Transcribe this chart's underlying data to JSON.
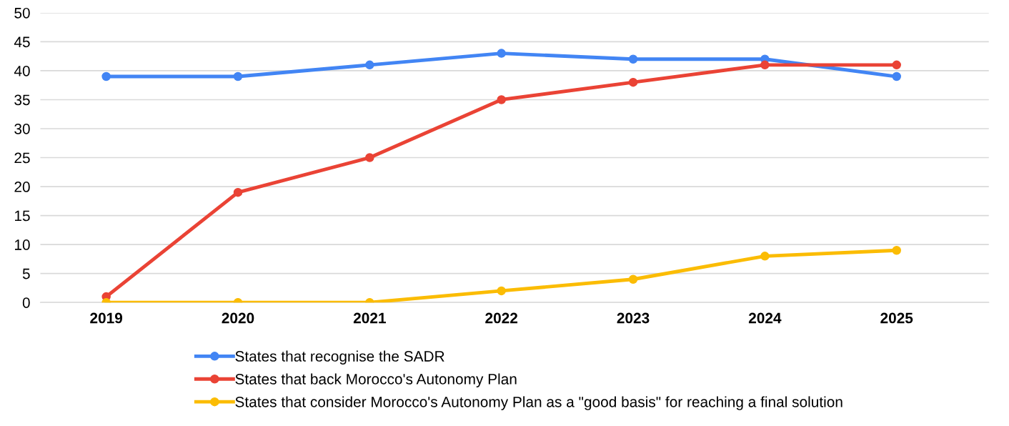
{
  "chart_data": {
    "type": "line",
    "categories": [
      "2019",
      "2020",
      "2021",
      "2022",
      "2023",
      "2024",
      "2025"
    ],
    "series": [
      {
        "name": "States that recognise the SADR",
        "color": "#4285f4",
        "values": [
          39,
          39,
          41,
          43,
          42,
          42,
          39
        ]
      },
      {
        "name": "States that back Morocco's Autonomy Plan",
        "color": "#ea4335",
        "values": [
          1,
          19,
          25,
          35,
          38,
          41,
          41
        ]
      },
      {
        "name": "States that consider Morocco's Autonomy Plan as a \"good basis\" for reaching a final solution",
        "color": "#fbbc04",
        "values": [
          0,
          0,
          0,
          2,
          4,
          8,
          9
        ]
      }
    ],
    "ylim": [
      0,
      50
    ],
    "yticks": [
      0,
      5,
      10,
      15,
      20,
      25,
      30,
      35,
      40,
      45,
      50
    ],
    "grid": "y",
    "legend": "bottom",
    "marker": "circle",
    "line_style": "solid"
  }
}
